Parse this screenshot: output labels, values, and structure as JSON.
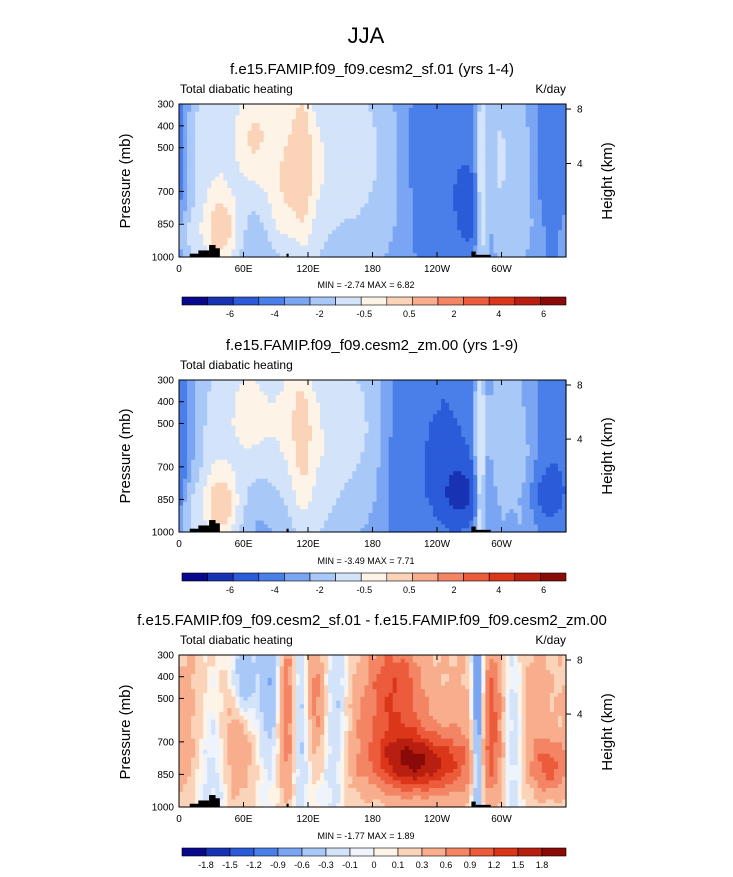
{
  "page_title": "JJA",
  "chart_data": [
    {
      "type": "heatmap",
      "title": "f.e15.FAMIP.f09_f09.cesm2_sf.01 (yrs 1-4)",
      "left_string": "Total diabatic heating",
      "right_string": "K/day",
      "xlabel": "",
      "ylabel": "Pressure (mb)",
      "y2label": "Height (km)",
      "x_ticks": [
        "0",
        "60E",
        "120E",
        "180",
        "120W",
        "60W"
      ],
      "x_tick_values": [
        0,
        60,
        120,
        180,
        240,
        300
      ],
      "xlim": [
        0,
        360
      ],
      "y_ticks": [
        "300",
        "400",
        "500",
        "700",
        "850",
        "1000"
      ],
      "y_tick_values": [
        300,
        400,
        500,
        700,
        850,
        1000
      ],
      "ylim": [
        1000,
        300
      ],
      "y2_ticks": [
        "8",
        "4"
      ],
      "y2_tick_values": [
        8,
        4
      ],
      "min_max_text": "MIN = -2.74   MAX =  6.82",
      "min": -2.74,
      "max": 6.82,
      "colorbar_labels": [
        "-6",
        "-4",
        "-2",
        "-0.5",
        "0.5",
        "2",
        "4",
        "6"
      ],
      "colorbar_colors": [
        "#08088c",
        "#1832b4",
        "#2b5bd8",
        "#4a7ee8",
        "#7aa5f3",
        "#a8c8f8",
        "#d3e3fa",
        "#fdf3e6",
        "#fbd3b8",
        "#f8ad8c",
        "#f38564",
        "#ec5b3b",
        "#db3619",
        "#b81f10",
        "#8a0a08"
      ],
      "blobs": [
        {
          "lon": 35,
          "p": 650,
          "rx": 14,
          "ry": 380,
          "v": 3.5
        },
        {
          "lon": 40,
          "p": 880,
          "rx": 12,
          "ry": 110,
          "v": 5
        },
        {
          "lon": 10,
          "p": 900,
          "rx": 8,
          "ry": 80,
          "v": 2
        },
        {
          "lon": 18,
          "p": 500,
          "rx": 6,
          "ry": 200,
          "v": 1.5
        },
        {
          "lon": 65,
          "p": 430,
          "rx": 12,
          "ry": 200,
          "v": 4
        },
        {
          "lon": 80,
          "p": 480,
          "rx": 14,
          "ry": 220,
          "v": 3
        },
        {
          "lon": 105,
          "p": 500,
          "rx": 14,
          "ry": 300,
          "v": 4.5
        },
        {
          "lon": 115,
          "p": 600,
          "rx": 6,
          "ry": 300,
          "v": 3
        },
        {
          "lon": 125,
          "p": 700,
          "rx": 12,
          "ry": 350,
          "v": 2
        },
        {
          "lon": 95,
          "p": 800,
          "rx": 10,
          "ry": 150,
          "v": 2.5
        },
        {
          "lon": 150,
          "p": 520,
          "rx": 20,
          "ry": 280,
          "v": 2.5
        },
        {
          "lon": 170,
          "p": 520,
          "rx": 22,
          "ry": 300,
          "v": 1.5
        },
        {
          "lon": 200,
          "p": 620,
          "rx": 14,
          "ry": 350,
          "v": 0.6
        },
        {
          "lon": 245,
          "p": 550,
          "rx": 28,
          "ry": 380,
          "v": -1.8
        },
        {
          "lon": 270,
          "p": 780,
          "rx": 8,
          "ry": 130,
          "v": -2.5
        },
        {
          "lon": 281,
          "p": 650,
          "rx": 3.5,
          "ry": 360,
          "v": 4
        },
        {
          "lon": 298,
          "p": 550,
          "rx": 9,
          "ry": 280,
          "v": 2.5
        },
        {
          "lon": 320,
          "p": 650,
          "rx": 9,
          "ry": 320,
          "v": 1.2
        },
        {
          "lon": 348,
          "p": 600,
          "rx": 14,
          "ry": 330,
          "v": -1.6
        },
        {
          "lon": 340,
          "p": 860,
          "rx": 12,
          "ry": 90,
          "v": 0.4
        }
      ]
    },
    {
      "type": "heatmap",
      "title": "f.e15.FAMIP.f09_f09.cesm2_zm.00 (yrs 1-9)",
      "left_string": "Total diabatic heating",
      "right_string": "K/day",
      "xlabel": "",
      "ylabel": "Pressure (mb)",
      "y2label": "Height (km)",
      "x_ticks": [
        "0",
        "60E",
        "120E",
        "180",
        "120W",
        "60W"
      ],
      "x_tick_values": [
        0,
        60,
        120,
        180,
        240,
        300
      ],
      "xlim": [
        0,
        360
      ],
      "y_ticks": [
        "300",
        "400",
        "500",
        "700",
        "850",
        "1000"
      ],
      "y_tick_values": [
        300,
        400,
        500,
        700,
        850,
        1000
      ],
      "ylim": [
        1000,
        300
      ],
      "y2_ticks": [
        "8",
        "4"
      ],
      "y2_tick_values": [
        8,
        4
      ],
      "min_max_text": "MIN = -3.49   MAX =  7.71",
      "min": -3.49,
      "max": 7.71,
      "colorbar_labels": [
        "-6",
        "-4",
        "-2",
        "-0.5",
        "0.5",
        "2",
        "4",
        "6"
      ],
      "colorbar_colors": [
        "#08088c",
        "#1832b4",
        "#2b5bd8",
        "#4a7ee8",
        "#7aa5f3",
        "#a8c8f8",
        "#d3e3fa",
        "#fdf3e6",
        "#fbd3b8",
        "#f8ad8c",
        "#f38564",
        "#ec5b3b",
        "#db3619",
        "#b81f10",
        "#8a0a08"
      ],
      "blobs": [
        {
          "lon": 35,
          "p": 650,
          "rx": 14,
          "ry": 380,
          "v": 3
        },
        {
          "lon": 40,
          "p": 880,
          "rx": 12,
          "ry": 110,
          "v": 5.5
        },
        {
          "lon": 12,
          "p": 900,
          "rx": 8,
          "ry": 80,
          "v": 2
        },
        {
          "lon": 62,
          "p": 430,
          "rx": 12,
          "ry": 200,
          "v": 3.5
        },
        {
          "lon": 78,
          "p": 480,
          "rx": 14,
          "ry": 220,
          "v": 2.5
        },
        {
          "lon": 105,
          "p": 480,
          "rx": 14,
          "ry": 300,
          "v": 4
        },
        {
          "lon": 115,
          "p": 600,
          "rx": 7,
          "ry": 320,
          "v": 3
        },
        {
          "lon": 130,
          "p": 700,
          "rx": 12,
          "ry": 350,
          "v": 2
        },
        {
          "lon": 150,
          "p": 500,
          "rx": 20,
          "ry": 280,
          "v": 2
        },
        {
          "lon": 170,
          "p": 500,
          "rx": 22,
          "ry": 300,
          "v": 1.2
        },
        {
          "lon": 205,
          "p": 600,
          "rx": 14,
          "ry": 350,
          "v": -0.8
        },
        {
          "lon": 248,
          "p": 600,
          "rx": 30,
          "ry": 420,
          "v": -2.2
        },
        {
          "lon": 262,
          "p": 820,
          "rx": 14,
          "ry": 100,
          "v": -3.2
        },
        {
          "lon": 280,
          "p": 650,
          "rx": 3.5,
          "ry": 380,
          "v": 5
        },
        {
          "lon": 298,
          "p": 550,
          "rx": 9,
          "ry": 280,
          "v": 2
        },
        {
          "lon": 320,
          "p": 650,
          "rx": 9,
          "ry": 320,
          "v": 1
        },
        {
          "lon": 350,
          "p": 560,
          "rx": 14,
          "ry": 340,
          "v": -1.8
        },
        {
          "lon": 345,
          "p": 830,
          "rx": 12,
          "ry": 80,
          "v": -2.2
        }
      ]
    },
    {
      "type": "heatmap",
      "title": "f.e15.FAMIP.f09_f09.cesm2_sf.01 - f.e15.FAMIP.f09_f09.cesm2_zm.00",
      "left_string": "Total diabatic heating",
      "right_string": "K/day",
      "xlabel": "",
      "ylabel": "Pressure (mb)",
      "y2label": "Height (km)",
      "x_ticks": [
        "0",
        "60E",
        "120E",
        "180",
        "120W",
        "60W"
      ],
      "x_tick_values": [
        0,
        60,
        120,
        180,
        240,
        300
      ],
      "xlim": [
        0,
        360
      ],
      "y_ticks": [
        "300",
        "400",
        "500",
        "700",
        "850",
        "1000"
      ],
      "y_tick_values": [
        300,
        400,
        500,
        700,
        850,
        1000
      ],
      "ylim": [
        1000,
        300
      ],
      "y2_ticks": [
        "8",
        "4"
      ],
      "y2_tick_values": [
        8,
        4
      ],
      "min_max_text": "MIN = -1.77   MAX =  1.89",
      "min": -1.77,
      "max": 1.89,
      "colorbar_labels": [
        "-1.8",
        "-1.5",
        "-1.2",
        "-0.9",
        "-0.6",
        "-0.3",
        "-0.1",
        "0",
        "0.1",
        "0.3",
        "0.6",
        "0.9",
        "1.2",
        "1.5",
        "1.8"
      ],
      "colorbar_colors": [
        "#08088c",
        "#1832b4",
        "#2b5bd8",
        "#4a7ee8",
        "#7aa5f3",
        "#a8c8f8",
        "#d3e3fa",
        "#eef3fc",
        "#fdf3e6",
        "#fbd3b8",
        "#f8ad8c",
        "#f38564",
        "#ec5b3b",
        "#db3619",
        "#b81f10",
        "#8a0a08"
      ],
      "blobs": [
        {
          "lon": 12,
          "p": 550,
          "rx": 16,
          "ry": 350,
          "v": 0.45
        },
        {
          "lon": 30,
          "p": 750,
          "rx": 12,
          "ry": 300,
          "v": -0.4
        },
        {
          "lon": 60,
          "p": 420,
          "rx": 8,
          "ry": 160,
          "v": -0.9
        },
        {
          "lon": 55,
          "p": 650,
          "rx": 12,
          "ry": 250,
          "v": 0.7
        },
        {
          "lon": 88,
          "p": 450,
          "rx": 10,
          "ry": 250,
          "v": -0.7
        },
        {
          "lon": 100,
          "p": 520,
          "rx": 7,
          "ry": 300,
          "v": 1.2
        },
        {
          "lon": 112,
          "p": 560,
          "rx": 6,
          "ry": 300,
          "v": -0.6
        },
        {
          "lon": 128,
          "p": 500,
          "rx": 8,
          "ry": 220,
          "v": 0.8
        },
        {
          "lon": 145,
          "p": 600,
          "rx": 10,
          "ry": 300,
          "v": -0.5
        },
        {
          "lon": 160,
          "p": 750,
          "rx": 12,
          "ry": 250,
          "v": 0.3
        },
        {
          "lon": 200,
          "p": 500,
          "rx": 22,
          "ry": 250,
          "v": 1.2
        },
        {
          "lon": 225,
          "p": 800,
          "rx": 30,
          "ry": 100,
          "v": 1.5
        },
        {
          "lon": 265,
          "p": 600,
          "rx": 20,
          "ry": 350,
          "v": 0.4
        },
        {
          "lon": 278,
          "p": 550,
          "rx": 4,
          "ry": 380,
          "v": -1.4
        },
        {
          "lon": 292,
          "p": 600,
          "rx": 8,
          "ry": 300,
          "v": 0.9
        },
        {
          "lon": 310,
          "p": 650,
          "rx": 9,
          "ry": 300,
          "v": -0.4
        },
        {
          "lon": 330,
          "p": 550,
          "rx": 12,
          "ry": 300,
          "v": 0.5
        },
        {
          "lon": 345,
          "p": 820,
          "rx": 12,
          "ry": 90,
          "v": 0.8
        }
      ]
    }
  ]
}
